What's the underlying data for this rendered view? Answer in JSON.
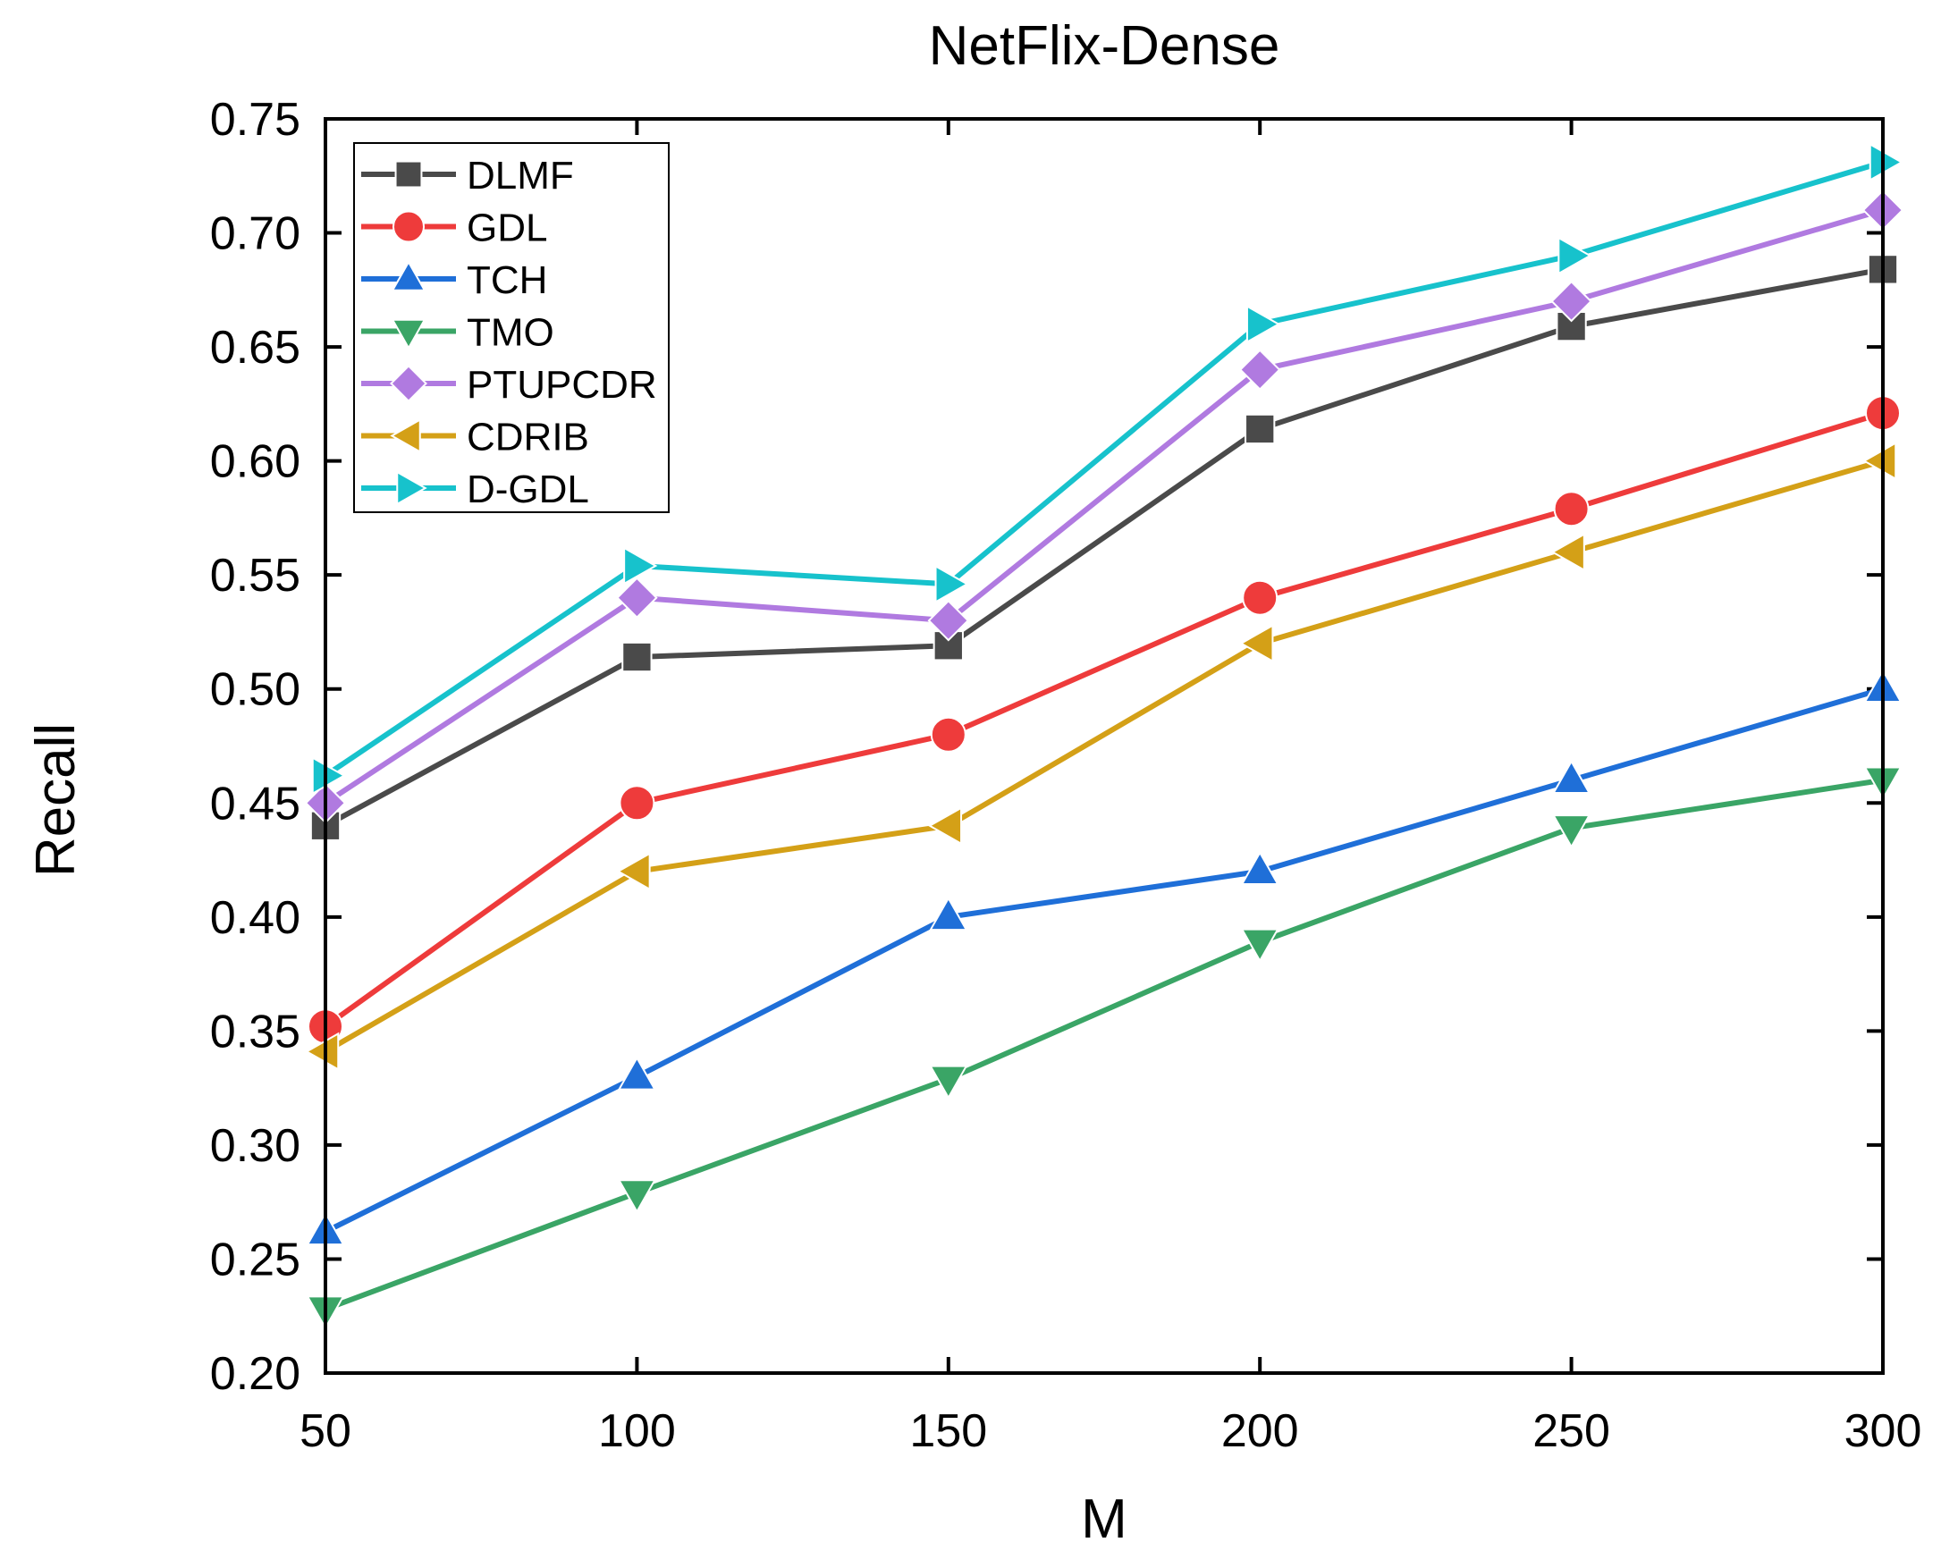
{
  "chart_data": {
    "type": "line",
    "title": "NetFlix-Dense",
    "xlabel": "M",
    "ylabel": "Recall",
    "x": [
      50,
      100,
      150,
      200,
      250,
      300
    ],
    "xlim": [
      50,
      300
    ],
    "ylim": [
      0.2,
      0.75
    ],
    "xticks": [
      "50",
      "100",
      "150",
      "200",
      "250",
      "300"
    ],
    "yticks": [
      "0.20",
      "0.25",
      "0.30",
      "0.35",
      "0.40",
      "0.45",
      "0.50",
      "0.55",
      "0.60",
      "0.65",
      "0.70",
      "0.75"
    ],
    "legend_position": "top-left",
    "series": [
      {
        "name": "DLMF",
        "color": "#4a4a4a",
        "marker": "square",
        "values": [
          0.44,
          0.514,
          0.519,
          0.614,
          0.659,
          0.684
        ]
      },
      {
        "name": "GDL",
        "color": "#ee3b3b",
        "marker": "circle",
        "values": [
          0.352,
          0.45,
          0.48,
          0.54,
          0.579,
          0.621
        ]
      },
      {
        "name": "TCH",
        "color": "#1f6fd8",
        "marker": "triangle-up",
        "values": [
          0.262,
          0.33,
          0.4,
          0.42,
          0.46,
          0.5
        ]
      },
      {
        "name": "TMO",
        "color": "#3aa566",
        "marker": "triangle-down",
        "values": [
          0.228,
          0.279,
          0.329,
          0.389,
          0.439,
          0.46
        ]
      },
      {
        "name": "PTUPCDR",
        "color": "#b07ae0",
        "marker": "diamond",
        "values": [
          0.45,
          0.54,
          0.53,
          0.64,
          0.67,
          0.71
        ]
      },
      {
        "name": "CDRIB",
        "color": "#d4a017",
        "marker": "triangle-left",
        "values": [
          0.341,
          0.42,
          0.44,
          0.52,
          0.56,
          0.6
        ]
      },
      {
        "name": "D-GDL",
        "color": "#17c2cc",
        "marker": "triangle-right",
        "values": [
          0.462,
          0.554,
          0.546,
          0.66,
          0.69,
          0.731
        ]
      }
    ]
  }
}
